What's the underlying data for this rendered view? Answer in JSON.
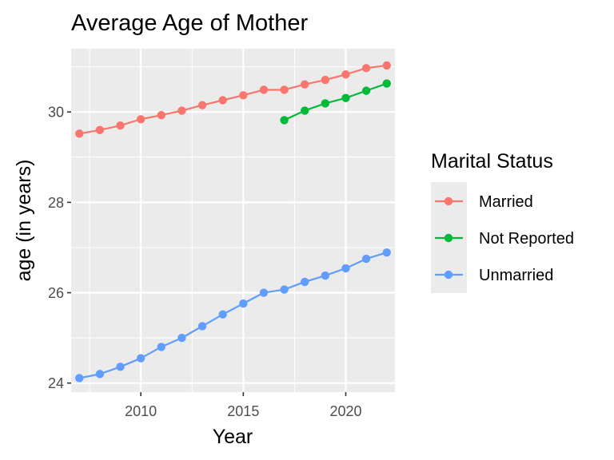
{
  "chart_data": {
    "type": "line",
    "title": "Average Age of Mother",
    "xlabel": "Year",
    "ylabel": "age (in years)",
    "xlim": [
      2006.6,
      2022.4
    ],
    "ylim": [
      23.8,
      31.4
    ],
    "x_ticks": [
      2010,
      2015,
      2020
    ],
    "y_ticks": [
      24,
      26,
      28,
      30
    ],
    "grid": true,
    "legend": {
      "title": "Marital Status",
      "position": "right"
    },
    "series": [
      {
        "name": "Married",
        "color": "#F8766D",
        "x": [
          2007,
          2008,
          2009,
          2010,
          2011,
          2012,
          2013,
          2014,
          2015,
          2016,
          2017,
          2018,
          2019,
          2020,
          2021,
          2022
        ],
        "values": [
          29.52,
          29.6,
          29.7,
          29.84,
          29.93,
          30.03,
          30.15,
          30.26,
          30.37,
          30.49,
          30.49,
          30.61,
          30.71,
          30.83,
          30.97,
          31.03
        ]
      },
      {
        "name": "Not Reported",
        "color": "#00BA38",
        "x": [
          2017,
          2018,
          2019,
          2020,
          2021,
          2022
        ],
        "values": [
          29.82,
          30.03,
          30.19,
          30.31,
          30.47,
          30.63
        ]
      },
      {
        "name": "Unmarried",
        "color": "#619CFF",
        "x": [
          2007,
          2008,
          2009,
          2010,
          2011,
          2012,
          2013,
          2014,
          2015,
          2016,
          2017,
          2018,
          2019,
          2020,
          2021,
          2022
        ],
        "values": [
          24.11,
          24.2,
          24.36,
          24.55,
          24.8,
          25.0,
          25.26,
          25.52,
          25.76,
          26.0,
          26.07,
          26.24,
          26.38,
          26.54,
          26.75,
          26.89
        ]
      }
    ]
  }
}
